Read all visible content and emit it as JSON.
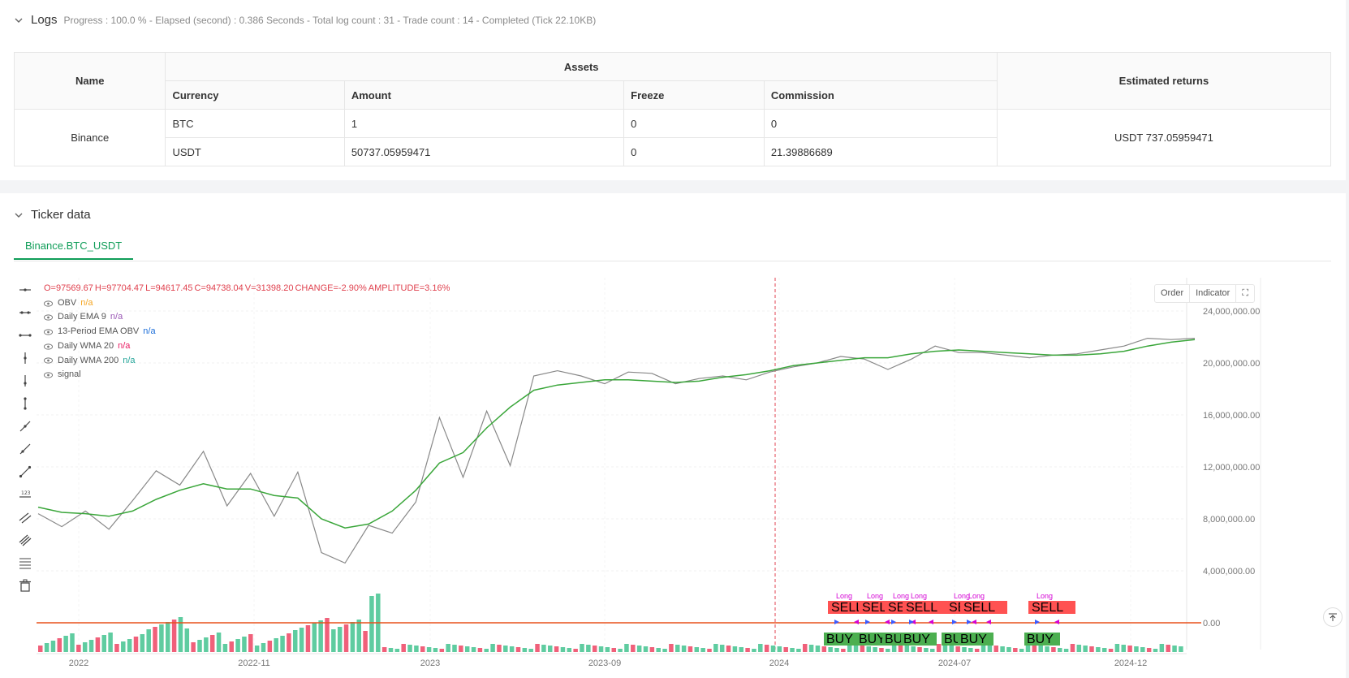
{
  "logs": {
    "title": "Logs",
    "meta": "Progress : 100.0 % - Elapsed (second) : 0.386  Seconds - Total log count : 31 - Trade count : 14 - Completed (Tick 22.10KB)"
  },
  "assets_table": {
    "col_name": "Name",
    "col_assets": "Assets",
    "col_currency": "Currency",
    "col_amount": "Amount",
    "col_freeze": "Freeze",
    "col_commission": "Commission",
    "col_returns": "Estimated returns",
    "exchange": "Binance",
    "rows": [
      {
        "currency": "BTC",
        "amount": "1",
        "freeze": "0",
        "commission": "0"
      },
      {
        "currency": "USDT",
        "amount": "50737.05959471",
        "freeze": "0",
        "commission": "21.39886689"
      }
    ],
    "returns": "USDT 737.05959471"
  },
  "ticker": {
    "title": "Ticker data",
    "tab": "Binance.BTC_USDT"
  },
  "chart": {
    "ohlc": {
      "o": "O=97569.67",
      "h": "H=97704.47",
      "l": "L=94617.45",
      "c": "C=94738.04",
      "v": "V=31398.20",
      "change": "CHANGE=-2.90%",
      "amplitude": "AMPLITUDE=3.16%"
    },
    "legend": [
      {
        "label": "OBV",
        "value": "n/a",
        "color": "#f5a623"
      },
      {
        "label": "Daily EMA 9",
        "value": "n/a",
        "color": "#9b59b6"
      },
      {
        "label": "13-Period EMA OBV",
        "value": "n/a",
        "color": "#1e6fd9"
      },
      {
        "label": "Daily WMA 20",
        "value": "n/a",
        "color": "#e91e63"
      },
      {
        "label": "Daily WMA 200",
        "value": "n/a",
        "color": "#26a69a"
      },
      {
        "label": "signal",
        "value": "",
        "color": "#888"
      }
    ],
    "buttons": {
      "order": "Order",
      "indicator": "Indicator"
    },
    "y_ticks": [
      "24,000,000.00",
      "20,000,000.00",
      "16,000,000.00",
      "12,000,000.00",
      "8,000,000.00",
      "4,000,000.00",
      "0.00"
    ],
    "x_ticks": [
      "2022",
      "2022-11",
      "2023",
      "2023-09",
      "2024",
      "2024-07",
      "2024-12"
    ],
    "signal_labels": {
      "sell": "SELL",
      "buy": "BUY",
      "long": "Long"
    },
    "colors": {
      "obv_line": "#888888",
      "ema_line": "#3aa63a",
      "up": "#5fcca0",
      "down": "#f0607a",
      "sell": "#ff5252",
      "buy": "#4caf50",
      "marker": "#d400d4",
      "baseline": "#e8501c"
    }
  },
  "chart_data": {
    "type": "line",
    "title": "Binance.BTC_USDT",
    "xlabel": "",
    "ylabel": "",
    "ylim": [
      0,
      24000000
    ],
    "x_ticks": [
      "2022",
      "2022-11",
      "2023",
      "2023-09",
      "2024",
      "2024-07",
      "2024-12"
    ],
    "series": [
      {
        "name": "OBV",
        "values": [
          8.4,
          7.4,
          8.6,
          7.2,
          9.4,
          11.7,
          10.6,
          13.2,
          9.0,
          11.5,
          8.2,
          11.6,
          5.4,
          4.6,
          7.5,
          6.9,
          9.3,
          15.8,
          11.2,
          16.3,
          12.1,
          19.0,
          19.4,
          19.0,
          18.4,
          19.3,
          19.2,
          18.4,
          18.8,
          19.0,
          18.7,
          19.3,
          19.7,
          20.0,
          20.5,
          20.3,
          19.5,
          20.3,
          21.3,
          20.8,
          20.8,
          20.6,
          20.4,
          20.6,
          20.7,
          21.0,
          21.3,
          21.9,
          21.8,
          21.9
        ]
      },
      {
        "name": "13-Period EMA OBV",
        "values": [
          8.9,
          8.5,
          8.4,
          8.2,
          8.6,
          9.5,
          10.2,
          10.7,
          10.3,
          10.3,
          9.8,
          9.6,
          8.0,
          7.3,
          7.6,
          8.6,
          10.2,
          12.3,
          13.1,
          15.0,
          16.6,
          17.9,
          18.3,
          18.5,
          18.7,
          18.7,
          18.6,
          18.5,
          18.6,
          18.9,
          19.1,
          19.4,
          19.8,
          20.0,
          20.2,
          20.4,
          20.4,
          20.7,
          20.9,
          21.0,
          20.9,
          20.8,
          20.7,
          20.6,
          20.6,
          20.7,
          20.9,
          21.3,
          21.6,
          21.8
        ]
      }
    ],
    "volume_hint": "colored volume bars (up/down) at bottom",
    "signals": {
      "sell_count": 7,
      "buy_count": 7
    }
  }
}
